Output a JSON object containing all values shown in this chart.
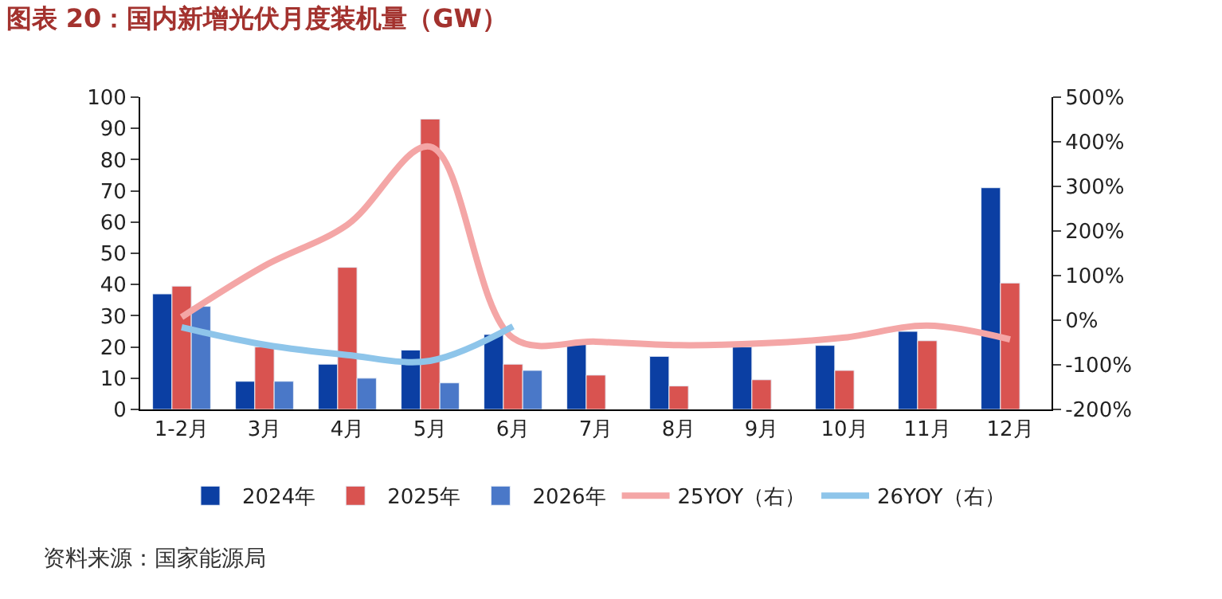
{
  "chart_data": {
    "type": "bar",
    "title": "图表 20：国内新增光伏月度装机量（GW）",
    "categories": [
      "1-2月",
      "3月",
      "4月",
      "5月",
      "6月",
      "7月",
      "8月",
      "9月",
      "10月",
      "11月",
      "12月"
    ],
    "series": [
      {
        "name": "2024年",
        "color": "#0b3fa3",
        "values": [
          37,
          9,
          14.5,
          19,
          24,
          21,
          17,
          20,
          20.5,
          25,
          71
        ]
      },
      {
        "name": "2025年",
        "color": "#d95350",
        "values": [
          39.5,
          20,
          45.5,
          93,
          14.5,
          11,
          7.5,
          9.5,
          12.5,
          22,
          40.5
        ]
      },
      {
        "name": "2026年",
        "color": "#4a78c8",
        "values": [
          33,
          9,
          10,
          8.5,
          12.5,
          null,
          null,
          null,
          null,
          null,
          null
        ]
      },
      {
        "name": "25YOY（右）",
        "type": "line",
        "axis": "y2",
        "color": "#f4a6a6",
        "values": [
          7,
          122,
          214,
          389,
          -40,
          -48,
          -56,
          -52,
          -39,
          -12,
          -43
        ]
      },
      {
        "name": "26YOY（右）",
        "type": "line",
        "axis": "y2",
        "color": "#8ec5ea",
        "values": [
          -16,
          -55,
          -78,
          -91,
          -14,
          null,
          null,
          null,
          null,
          null,
          null
        ]
      }
    ],
    "ylim": [
      0,
      100
    ],
    "yticks": [
      0,
      10,
      20,
      30,
      40,
      50,
      60,
      70,
      80,
      90,
      100
    ],
    "y2lim": [
      -200,
      500
    ],
    "y2ticks": [
      {
        "value": -200,
        "label": "-200%"
      },
      {
        "value": -100,
        "label": "-100%"
      },
      {
        "value": 0,
        "label": "0%"
      },
      {
        "value": 100,
        "label": "100%"
      },
      {
        "value": 200,
        "label": "200%"
      },
      {
        "value": 300,
        "label": "300%"
      },
      {
        "value": 400,
        "label": "400%"
      },
      {
        "value": 500,
        "label": "500%"
      }
    ],
    "legend": "bottom",
    "marker": "none",
    "line_style": "solid",
    "annotations": [
      "资料来源：国家能源局"
    ]
  }
}
